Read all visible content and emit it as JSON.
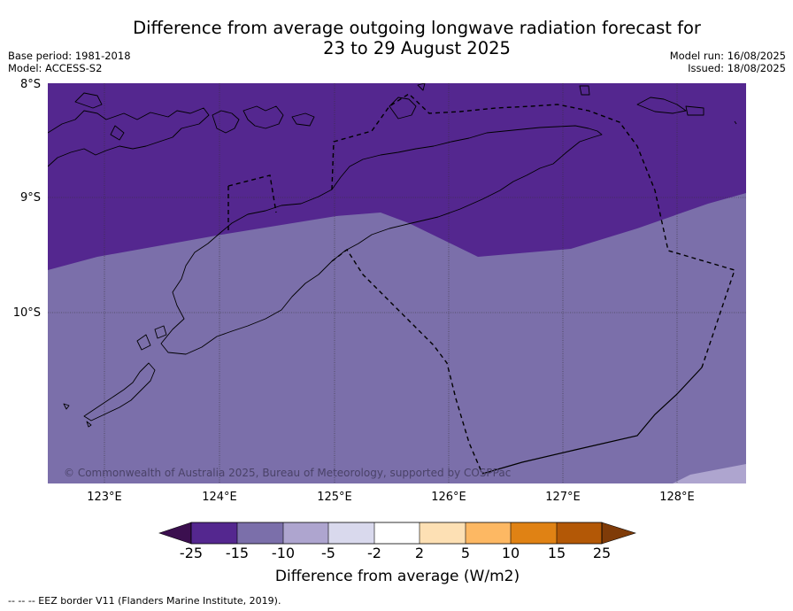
{
  "title_line1": "Difference from average outgoing longwave radiation forecast for",
  "title_line2": "23 to 29 August 2025",
  "base_period": "Base period: 1981-2018",
  "model": "Model: ACCESS-S2",
  "model_run": "Model run: 16/08/2025",
  "issued": "Issued: 18/08/2025",
  "copyright": "© Commonwealth of Australia 2025, Bureau of Meteorology, supported by COSPPac",
  "footnote": "--  --  -- EEZ border V11 (Flanders Marine Institute, 2019).",
  "map": {
    "lat_labels": [
      "8°S",
      "9°S",
      "10°S"
    ],
    "lon_labels": [
      "123°E",
      "124°E",
      "125°E",
      "126°E",
      "127°E",
      "128°E"
    ],
    "land_color": "#000000",
    "graticule": "dotted"
  },
  "colorbar": {
    "label": "Difference from average (W/m2)",
    "ticks": [
      "-25",
      "-15",
      "-10",
      "-5",
      "-2",
      "2",
      "5",
      "10",
      "15",
      "25"
    ],
    "colors": {
      "below": "#3b0f4f",
      "c1": "#54278f",
      "c2": "#7b6faa",
      "c3": "#aea5cf",
      "c4": "#d9d9ed",
      "c5": "#ffffff",
      "c6": "#fde0b4",
      "c7": "#fdb863",
      "c8": "#e08214",
      "c9": "#b35806",
      "above": "#7f3b08"
    }
  }
}
